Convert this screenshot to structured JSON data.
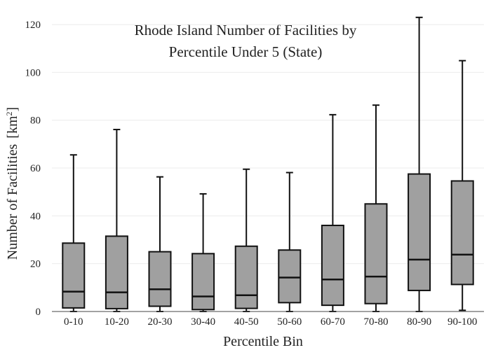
{
  "chart_data": {
    "type": "box",
    "title_lines": [
      "Rhode Island Number of Facilities by",
      "Percentile Under 5 (State)"
    ],
    "xlabel": "Percentile Bin",
    "ylabel": "Number of Facilities",
    "ylabel_unit_base": "[km",
    "ylabel_unit_sup": "2",
    "ylabel_unit_close": "]",
    "ylim": [
      0,
      125
    ],
    "yticks": [
      0,
      20,
      40,
      60,
      80,
      100,
      120
    ],
    "grid": true,
    "categories": [
      "0-10",
      "10-20",
      "20-30",
      "30-40",
      "40-50",
      "50-60",
      "60-70",
      "70-80",
      "80-90",
      "90-100"
    ],
    "boxes": [
      {
        "min": 0,
        "q1": 1.5,
        "median": 8.3,
        "q3": 28.6,
        "max": 65.5
      },
      {
        "min": 0,
        "q1": 1.2,
        "median": 8.0,
        "q3": 31.5,
        "max": 76.1
      },
      {
        "min": 0,
        "q1": 2.2,
        "median": 9.3,
        "q3": 25.0,
        "max": 56.3
      },
      {
        "min": 0,
        "q1": 0.8,
        "median": 6.3,
        "q3": 24.2,
        "max": 49.2
      },
      {
        "min": 0,
        "q1": 1.3,
        "median": 6.8,
        "q3": 27.3,
        "max": 59.5
      },
      {
        "min": 0,
        "q1": 3.7,
        "median": 14.2,
        "q3": 25.7,
        "max": 58.1
      },
      {
        "min": 0,
        "q1": 2.6,
        "median": 13.4,
        "q3": 36.0,
        "max": 82.3
      },
      {
        "min": 0,
        "q1": 3.3,
        "median": 14.6,
        "q3": 45.0,
        "max": 86.3
      },
      {
        "min": 0,
        "q1": 8.8,
        "median": 21.7,
        "q3": 57.5,
        "max": 123.0
      },
      {
        "min": 0.5,
        "q1": 11.3,
        "median": 23.8,
        "q3": 54.6,
        "max": 104.9
      }
    ]
  }
}
